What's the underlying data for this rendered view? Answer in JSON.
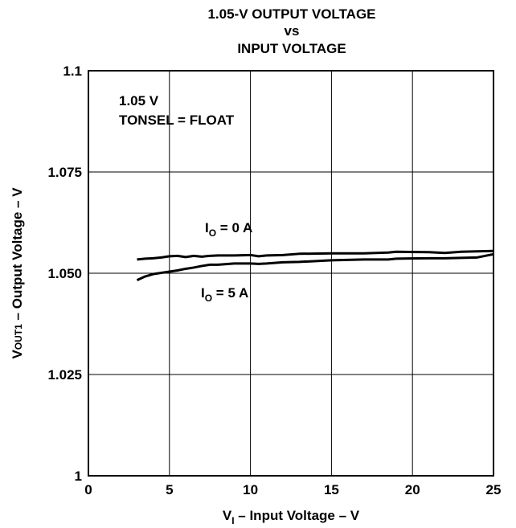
{
  "chart_data": {
    "type": "line",
    "title_lines": [
      "1.05-V OUTPUT VOLTAGE",
      "vs",
      "INPUT VOLTAGE"
    ],
    "xlabel": {
      "main": "V",
      "sub": "I",
      "rest": " – Input Voltage – V"
    },
    "ylabel": {
      "main": "V",
      "sub": "OUT1",
      "rest": " – Output Voltage – V"
    },
    "xlim": [
      0,
      25
    ],
    "ylim": [
      1.0,
      1.1
    ],
    "xticks": [
      0,
      5,
      10,
      15,
      20,
      25
    ],
    "xtick_labels": [
      "0",
      "5",
      "10",
      "15",
      "20",
      "25"
    ],
    "yticks": [
      1.0,
      1.025,
      1.05,
      1.075,
      1.1
    ],
    "ytick_labels": [
      "1",
      "1.025",
      "1.050",
      "1.075",
      "1.1"
    ],
    "grid": true,
    "annotations": [
      {
        "text": "1.05 V"
      },
      {
        "text": "TONSEL = FLOAT"
      }
    ],
    "series": [
      {
        "label_main": "I",
        "label_sub": "O",
        "label_rest": " = 0 A",
        "x": [
          3,
          3.5,
          4,
          4.5,
          5,
          5.5,
          6,
          6.5,
          7,
          7.5,
          8,
          9,
          10,
          10.5,
          11,
          12,
          13,
          15,
          17,
          18.5,
          19,
          21,
          22,
          23,
          24,
          25
        ],
        "y": [
          1.0534,
          1.0536,
          1.0537,
          1.0539,
          1.0542,
          1.0543,
          1.054,
          1.0543,
          1.0541,
          1.0543,
          1.0544,
          1.0544,
          1.0545,
          1.0542,
          1.0544,
          1.0545,
          1.0548,
          1.0549,
          1.0549,
          1.0551,
          1.0553,
          1.0552,
          1.055,
          1.0553,
          1.0554,
          1.0555
        ]
      },
      {
        "label_main": "I",
        "label_sub": "O",
        "label_rest": " = 5 A",
        "x": [
          3,
          3.5,
          4,
          4.5,
          5,
          5.5,
          6,
          6.5,
          7,
          7.5,
          8,
          9,
          10,
          10.5,
          11,
          12,
          13,
          15,
          17,
          18.5,
          19,
          21,
          22,
          23,
          24,
          25
        ],
        "y": [
          1.0483,
          1.0492,
          1.0498,
          1.0501,
          1.0504,
          1.0507,
          1.0511,
          1.0514,
          1.0518,
          1.0521,
          1.0521,
          1.0524,
          1.0524,
          1.0523,
          1.0524,
          1.0527,
          1.0528,
          1.0532,
          1.0534,
          1.0534,
          1.0536,
          1.0537,
          1.0537,
          1.0538,
          1.0539,
          1.0547
        ]
      }
    ]
  }
}
